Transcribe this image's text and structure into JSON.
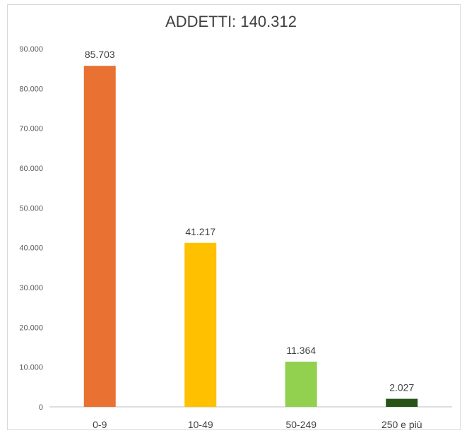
{
  "chart_data": {
    "type": "bar",
    "title": "ADDETTI: 140.312",
    "xlabel": "",
    "ylabel": "",
    "categories": [
      "0-9",
      "10-49",
      "50-249",
      "250 e più"
    ],
    "values": [
      85703,
      41217,
      11364,
      2027
    ],
    "data_labels": [
      "85.703",
      "41.217",
      "11.364",
      "2.027"
    ],
    "colors": [
      "#E97132",
      "#FFC000",
      "#92D050",
      "#275317"
    ],
    "ylim": [
      0,
      90000
    ],
    "yticks": [
      0,
      10000,
      20000,
      30000,
      40000,
      50000,
      60000,
      70000,
      80000,
      90000
    ],
    "ytick_labels": [
      "0",
      "10.000",
      "20.000",
      "30.000",
      "40.000",
      "50.000",
      "60.000",
      "70.000",
      "80.000",
      "90.000"
    ],
    "grid": false,
    "legend": "none"
  }
}
